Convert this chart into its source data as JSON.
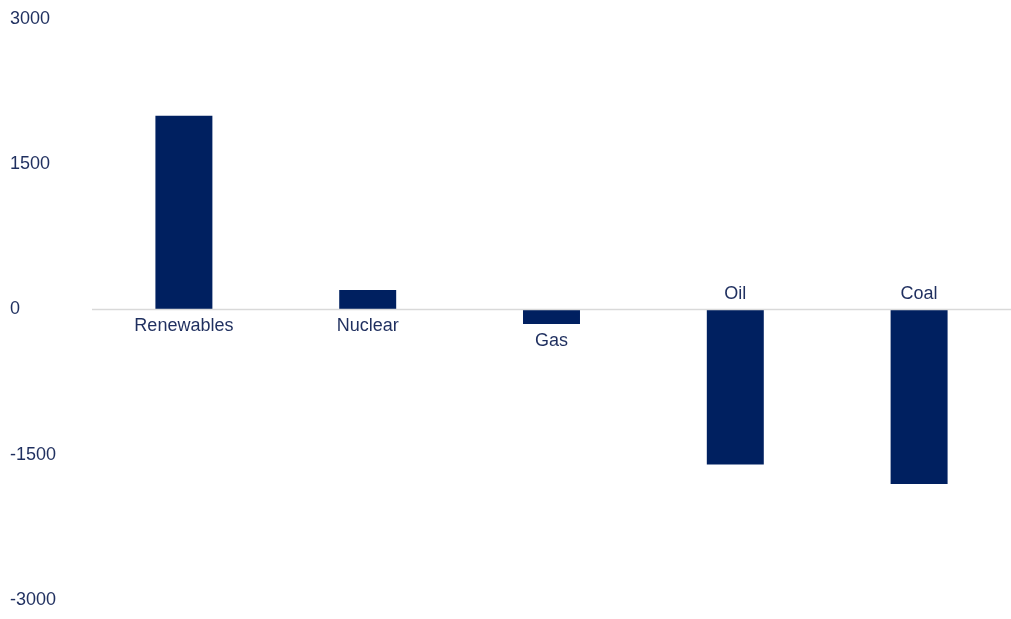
{
  "chart_data": {
    "type": "bar",
    "categories": [
      "Renewables",
      "Nuclear",
      "Gas",
      "Oil",
      "Coal"
    ],
    "values": [
      2000,
      200,
      -150,
      -1600,
      -1800
    ],
    "color": "#002060",
    "ylim": [
      -3000,
      3000
    ],
    "yticks": [
      3000,
      1500,
      0,
      -1500,
      -3000
    ],
    "grid": false,
    "legend": false
  }
}
